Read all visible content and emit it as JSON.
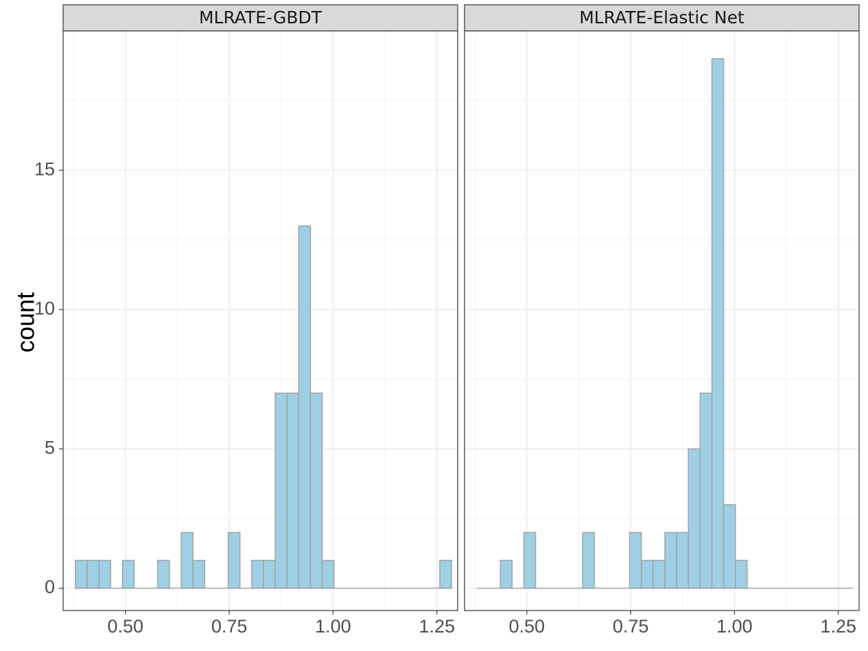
{
  "chart_data": {
    "type": "bar",
    "chart_kind": "faceted histogram",
    "ylabel": "count",
    "xlabel": "",
    "xlim": [
      0.35,
      1.3
    ],
    "ylim": [
      -0.8,
      20
    ],
    "x_ticks": [
      0.5,
      0.75,
      1.0,
      1.25
    ],
    "x_tick_labels": [
      "0.50",
      "0.75",
      "1.00",
      "1.25"
    ],
    "y_ticks": [
      0,
      5,
      10,
      15
    ],
    "y_tick_labels": [
      "0",
      "5",
      "10",
      "15"
    ],
    "y_minor_ticks": [
      2.5,
      7.5,
      12.5,
      17.5
    ],
    "grid": true,
    "bin_width": 0.0283,
    "bin_start": 0.3796,
    "bins": 32,
    "fill_color": "#9ecfe4",
    "outline_color": "#a3a3a3",
    "facets": [
      {
        "name": "MLRATE-GBDT",
        "counts": [
          1,
          1,
          1,
          0,
          1,
          0,
          0,
          1,
          0,
          2,
          1,
          0,
          0,
          2,
          0,
          1,
          1,
          7,
          7,
          13,
          7,
          1,
          0,
          0,
          0,
          0,
          0,
          0,
          0,
          0,
          0,
          1
        ]
      },
      {
        "name": "MLRATE-Elastic Net",
        "counts": [
          0,
          0,
          1,
          0,
          2,
          0,
          0,
          0,
          0,
          2,
          0,
          0,
          0,
          2,
          1,
          1,
          2,
          2,
          5,
          7,
          19,
          3,
          1,
          0,
          0,
          0,
          0,
          0,
          0,
          0,
          0,
          0
        ]
      }
    ]
  }
}
